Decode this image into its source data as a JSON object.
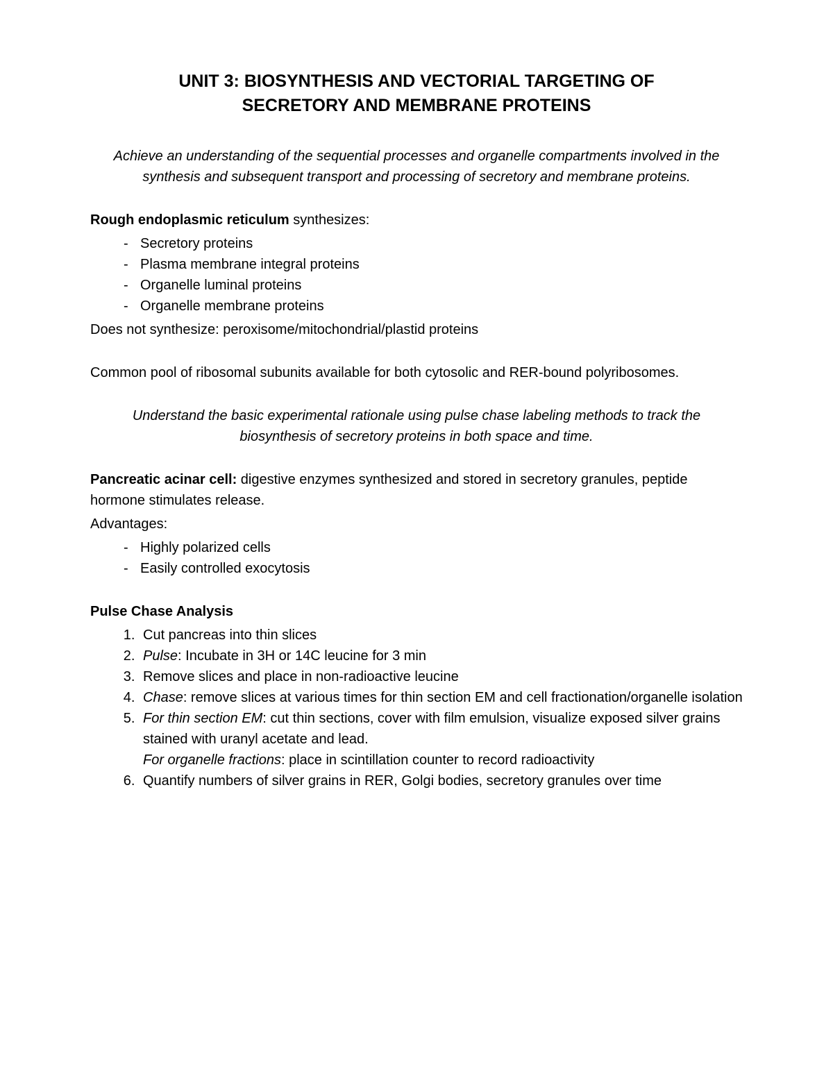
{
  "title_line1": "UNIT 3: BIOSYNTHESIS AND VECTORIAL TARGETING OF",
  "title_line2": "SECRETORY AND MEMBRANE PROTEINS",
  "objective1": "Achieve an understanding of the sequential processes and organelle compartments involved in the synthesis and subsequent transport and processing of secretory and membrane proteins.",
  "rer_bold": "Rough endoplasmic reticulum",
  "rer_after": " synthesizes:",
  "rer_items": {
    "0": "Secretory proteins",
    "1": "Plasma membrane integral proteins",
    "2": "Organelle luminal proteins",
    "3": "Organelle membrane proteins"
  },
  "does_not": "Does not synthesize: peroxisome/mitochondrial/plastid proteins",
  "common_pool": "Common pool of ribosomal subunits available for both cytosolic and RER-bound polyribosomes.",
  "objective2": "Understand the basic experimental rationale using pulse chase labeling methods to track the biosynthesis of  secretory proteins in both space and time.",
  "pancreatic_bold": "Pancreatic acinar cell:",
  "pancreatic_after": " digestive enzymes synthesized and stored in secretory granules, peptide hormone stimulates release.",
  "advantages_label": "Advantages:",
  "adv_items": {
    "0": "Highly polarized cells",
    "1": "Easily controlled exocytosis"
  },
  "pulse_heading": "Pulse Chase Analysis",
  "steps": {
    "0": "Cut pancreas into thin slices",
    "1_italic": "Pulse",
    "1_rest": ": Incubate in 3H or 14C leucine for 3 min",
    "2": "Remove slices and place in non-radioactive leucine",
    "3_italic": "Chase",
    "3_rest": ": remove slices at various times for thin section EM and cell fractionation/organelle isolation",
    "4_italic1": "For thin section EM",
    "4_rest1": ": cut thin sections, cover with film emulsion, visualize exposed silver grains stained with uranyl acetate and lead.",
    "4_italic2": "For organelle fractions",
    "4_rest2": ": place in scintillation counter to record radioactivity",
    "5": "Quantify numbers of silver grains in RER, Golgi bodies, secretory granules over time"
  }
}
